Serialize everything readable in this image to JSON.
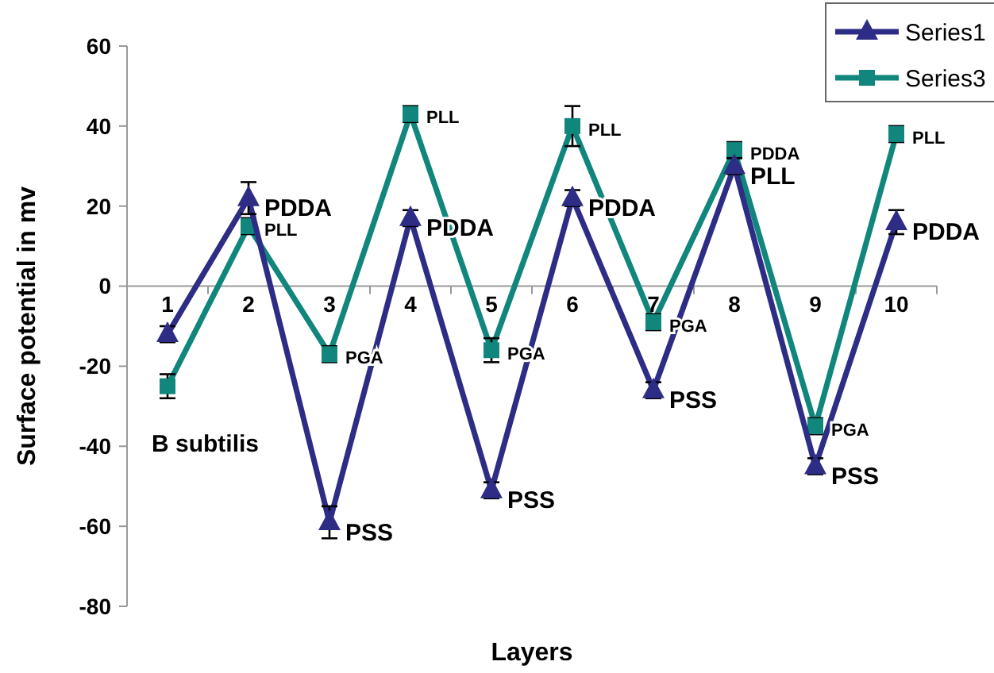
{
  "chart_data": {
    "type": "line",
    "xlabel": "Layers",
    "ylabel": "Surface potential in mv",
    "categories": [
      "1",
      "2",
      "3",
      "4",
      "5",
      "6",
      "7",
      "8",
      "9",
      "10"
    ],
    "series": [
      {
        "name": "Series1",
        "color": "#2e2d86",
        "marker": "triangle",
        "values": [
          -12,
          22,
          -59,
          17,
          -51,
          22,
          -26,
          30,
          -45,
          16
        ],
        "errors": [
          2,
          4,
          4,
          2,
          2,
          2,
          2,
          2,
          2,
          3
        ]
      },
      {
        "name": "Series3",
        "color": "#10867c",
        "marker": "square",
        "values": [
          -25,
          15,
          -17,
          43,
          -16,
          40,
          -9,
          34,
          -35,
          38
        ],
        "errors": [
          3,
          2,
          2,
          2,
          3,
          5,
          2,
          2,
          2,
          2
        ]
      }
    ],
    "ylim": [
      -80,
      60
    ],
    "yticks": [
      -80,
      -60,
      -40,
      -20,
      0,
      20,
      40,
      60
    ],
    "grid": false,
    "legend": "top right",
    "annotations": [
      {
        "text": "PDDA",
        "x": "2",
        "y": 22
      },
      {
        "text": "PSS",
        "x": "3",
        "y": -59
      },
      {
        "text": "PDDA",
        "x": "4",
        "y": 17
      },
      {
        "text": "PSS",
        "x": "5",
        "y": -51
      },
      {
        "text": "PDDA",
        "x": "6",
        "y": 22
      },
      {
        "text": "PSS",
        "x": "7",
        "y": -26
      },
      {
        "text": "PLL",
        "x": "8",
        "y": 30
      },
      {
        "text": "PSS",
        "x": "9",
        "y": -45
      },
      {
        "text": "PDDA",
        "x": "10",
        "y": 16
      },
      {
        "text": "PLL",
        "x": "2",
        "y": 15
      },
      {
        "text": "PGA",
        "x": "3",
        "y": -17
      },
      {
        "text": "PLL",
        "x": "4",
        "y": 43
      },
      {
        "text": "PGA",
        "x": "5",
        "y": -16
      },
      {
        "text": "PLL",
        "x": "6",
        "y": 40
      },
      {
        "text": "PGA",
        "x": "7",
        "y": -9
      },
      {
        "text": "PDDA",
        "x": "8",
        "y": 34
      },
      {
        "text": "PGA",
        "x": "9",
        "y": -35
      },
      {
        "text": "PLL",
        "x": "10",
        "y": 38
      },
      "B subtilis"
    ]
  }
}
